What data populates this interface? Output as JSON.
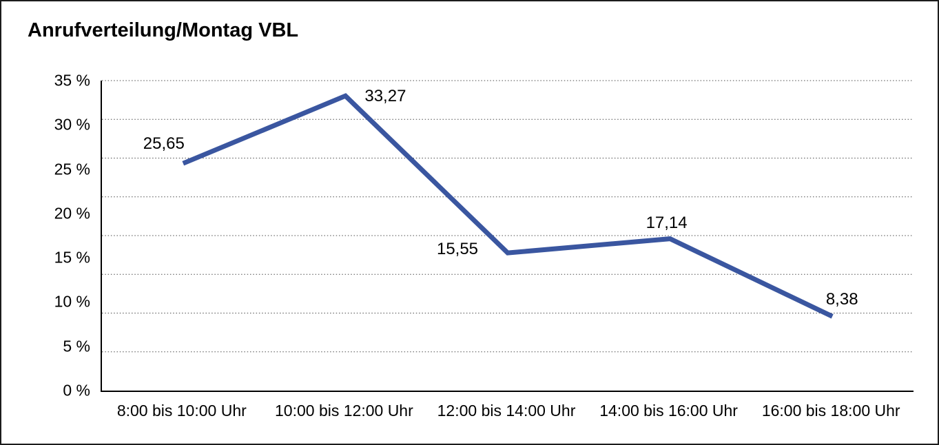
{
  "window": {
    "background": "#ffffff",
    "border_color": "#1c1c1c"
  },
  "title": "Anrufverteilung/Montag VBL",
  "chart_data": {
    "type": "line",
    "title": "Anrufverteilung/Montag VBL",
    "categories": [
      "8:00 bis 10:00 Uhr",
      "10:00 bis 12:00 Uhr",
      "12:00 bis 14:00 Uhr",
      "14:00 bis 16:00 Uhr",
      "16:00 bis 18:00 Uhr"
    ],
    "series": [
      {
        "name": "Anrufverteilung Montag VBL",
        "values": [
          25.65,
          33.27,
          15.55,
          17.14,
          8.38
        ],
        "point_labels": [
          "25,65",
          "33,27",
          "15,55",
          "17,14",
          "8,38"
        ],
        "color": "#3A56A0"
      }
    ],
    "xlabel": "",
    "ylabel": "",
    "ylim": [
      0,
      35
    ],
    "y_tick_labels": [
      "35 %",
      "30 %",
      "25 %",
      "20 %",
      "15 %",
      "10 %",
      "5 %",
      "0 %"
    ],
    "y_unit": "%",
    "grid": "horizontal-dotted",
    "dotted_gridline_count": 8,
    "gridline_color": "#4a4a4a",
    "axis_color": "#000000",
    "legend": "none"
  }
}
